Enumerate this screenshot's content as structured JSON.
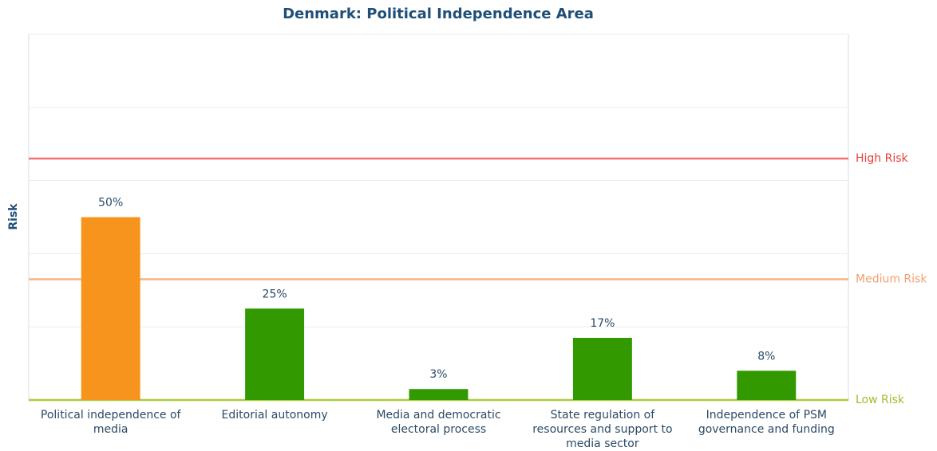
{
  "chart_data": {
    "type": "bar",
    "title": "Denmark: Political Independence Area",
    "y_label": "Risk",
    "categories": [
      "Political independence of media",
      "Editorial autonomy",
      "Media and democratic electoral process",
      "State regulation of resources and support to media sector",
      "Independence of PSM governance and funding"
    ],
    "values": [
      50,
      25,
      3,
      17,
      8
    ],
    "value_labels": [
      "50%",
      "25%",
      "3%",
      "17%",
      "8%"
    ],
    "colors": [
      "#f7941d",
      "#339900",
      "#339900",
      "#339900",
      "#339900"
    ],
    "ylim": [
      0,
      100
    ],
    "yticks": [
      0,
      20,
      40,
      60,
      80,
      100
    ],
    "grid": true,
    "thresholds": [
      {
        "label": "High Risk",
        "value": 66,
        "color": "#f07474",
        "text_color": "#e8403a"
      },
      {
        "label": "Medium Risk",
        "value": 33,
        "color": "#f5b48a",
        "text_color": "#f4a06e"
      },
      {
        "label": "Low Risk",
        "value": 0,
        "color": "#a9cc3c",
        "text_color": "#9dbf2a"
      }
    ]
  }
}
